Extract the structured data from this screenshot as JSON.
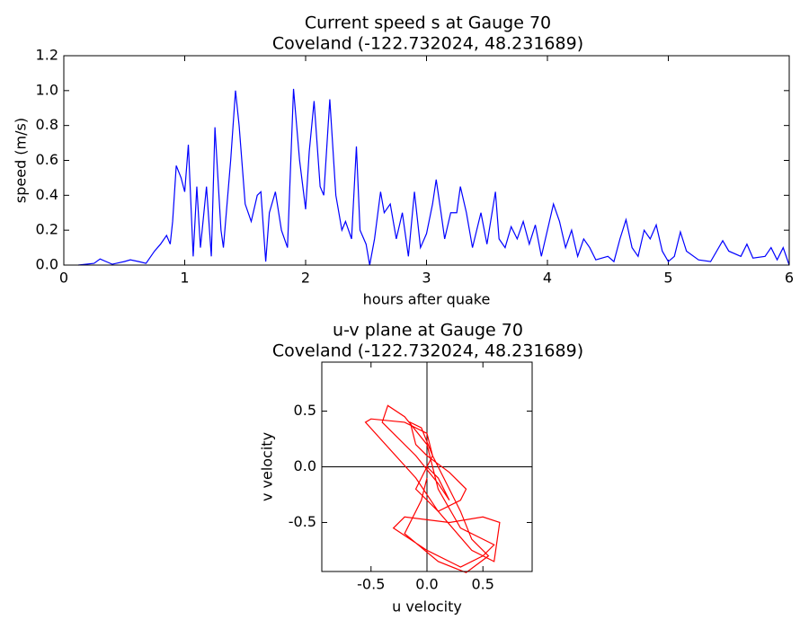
{
  "chart_data": [
    {
      "type": "line",
      "title": "Current speed s at Gauge 70",
      "subtitle": "Coveland  (-122.732024, 48.231689)",
      "xlabel": "hours after quake",
      "ylabel": "speed (m/s)",
      "xlim": [
        0,
        6
      ],
      "ylim": [
        0,
        1.2
      ],
      "xticks": [
        0,
        1,
        2,
        3,
        4,
        5,
        6
      ],
      "yticks": [
        {
          "value": 0,
          "label": "0.0"
        },
        0.2,
        0.4,
        0.6,
        0.8,
        {
          "value": 1,
          "label": "1.0"
        },
        1.2
      ],
      "color": "#0000ff",
      "x": [
        0.12,
        0.25,
        0.3,
        0.35,
        0.4,
        0.5,
        0.55,
        0.62,
        0.68,
        0.75,
        0.8,
        0.85,
        0.88,
        0.9,
        0.93,
        0.97,
        1.0,
        1.03,
        1.07,
        1.1,
        1.13,
        1.18,
        1.22,
        1.25,
        1.3,
        1.32,
        1.38,
        1.42,
        1.45,
        1.5,
        1.55,
        1.6,
        1.63,
        1.67,
        1.7,
        1.75,
        1.8,
        1.85,
        1.9,
        1.95,
        2.0,
        2.03,
        2.07,
        2.12,
        2.15,
        2.2,
        2.25,
        2.3,
        2.33,
        2.38,
        2.42,
        2.45,
        2.5,
        2.53,
        2.57,
        2.62,
        2.65,
        2.7,
        2.75,
        2.8,
        2.85,
        2.9,
        2.95,
        3.0,
        3.05,
        3.08,
        3.12,
        3.15,
        3.2,
        3.25,
        3.28,
        3.33,
        3.38,
        3.45,
        3.5,
        3.57,
        3.6,
        3.65,
        3.7,
        3.75,
        3.8,
        3.85,
        3.9,
        3.95,
        4.0,
        4.05,
        4.1,
        4.15,
        4.2,
        4.25,
        4.3,
        4.35,
        4.4,
        4.5,
        4.55,
        4.6,
        4.65,
        4.7,
        4.75,
        4.8,
        4.85,
        4.9,
        4.95,
        5.0,
        5.05,
        5.1,
        5.15,
        5.25,
        5.35,
        5.45,
        5.5,
        5.6,
        5.65,
        5.7,
        5.8,
        5.85,
        5.9,
        5.95,
        6.0
      ],
      "values": [
        0,
        0.01,
        0.035,
        0.02,
        0.005,
        0.02,
        0.03,
        0.02,
        0.01,
        0.08,
        0.12,
        0.17,
        0.12,
        0.25,
        0.57,
        0.5,
        0.42,
        0.69,
        0.05,
        0.45,
        0.1,
        0.45,
        0.05,
        0.79,
        0.2,
        0.1,
        0.6,
        1.0,
        0.8,
        0.35,
        0.25,
        0.4,
        0.42,
        0.02,
        0.3,
        0.42,
        0.2,
        0.1,
        1.01,
        0.6,
        0.32,
        0.65,
        0.94,
        0.45,
        0.4,
        0.95,
        0.4,
        0.2,
        0.25,
        0.15,
        0.68,
        0.2,
        0.12,
        0.0,
        0.15,
        0.42,
        0.3,
        0.35,
        0.15,
        0.3,
        0.05,
        0.42,
        0.1,
        0.18,
        0.35,
        0.49,
        0.3,
        0.15,
        0.3,
        0.3,
        0.45,
        0.3,
        0.1,
        0.3,
        0.12,
        0.42,
        0.15,
        0.1,
        0.22,
        0.15,
        0.25,
        0.12,
        0.23,
        0.05,
        0.2,
        0.35,
        0.25,
        0.1,
        0.2,
        0.05,
        0.15,
        0.1,
        0.03,
        0.05,
        0.02,
        0.15,
        0.26,
        0.1,
        0.05,
        0.2,
        0.15,
        0.23,
        0.08,
        0.02,
        0.05,
        0.19,
        0.08,
        0.03,
        0.02,
        0.14,
        0.08,
        0.05,
        0.12,
        0.04,
        0.05,
        0.1,
        0.03,
        0.1,
        0.0
      ]
    },
    {
      "type": "line",
      "title": "u-v plane at Gauge 70",
      "subtitle": "Coveland  (-122.732024, 48.231689)",
      "xlabel": "u velocity",
      "ylabel": "v velocity",
      "xlim": [
        -0.94,
        0.94
      ],
      "ylim": [
        -0.94,
        0.94
      ],
      "xticks": [
        -0.5,
        {
          "value": 0,
          "label": "0.0"
        },
        0.5
      ],
      "yticks": [
        -0.5,
        {
          "value": 0,
          "label": "0.0"
        },
        0.5
      ],
      "zero_lines": true,
      "color": "#ff0000",
      "x": [
        0,
        0.1,
        0.2,
        0.1,
        -0.1,
        -0.4,
        -0.35,
        -0.2,
        0,
        0.1,
        0.3,
        0.6,
        0.5,
        0.3,
        0,
        -0.3,
        -0.2,
        0.2,
        0.5,
        0.65,
        0.6,
        0.4,
        0.1,
        -0.1,
        -0.55,
        -0.5,
        -0.2,
        0,
        0.05,
        -0.1,
        0.1,
        0.3,
        0.35,
        0.2,
        0,
        -0.1,
        -0.15,
        -0.05,
        0.05,
        0.15,
        0.3,
        0.4,
        0.55,
        0.35,
        0.1,
        -0.2,
        -0.05,
        0
      ],
      "values": [
        0,
        -0.1,
        -0.3,
        -0.15,
        0.1,
        0.4,
        0.55,
        0.45,
        0.2,
        -0.2,
        -0.55,
        -0.7,
        -0.8,
        -0.9,
        -0.75,
        -0.55,
        -0.45,
        -0.5,
        -0.45,
        -0.5,
        -0.85,
        -0.75,
        -0.4,
        -0.1,
        0.4,
        0.43,
        0.4,
        0.3,
        0.1,
        -0.2,
        -0.4,
        -0.3,
        -0.2,
        -0.05,
        0.1,
        0.2,
        0.4,
        0.35,
        0.1,
        -0.1,
        -0.4,
        -0.65,
        -0.8,
        -0.95,
        -0.85,
        -0.6,
        -0.3,
        -0.1
      ]
    }
  ]
}
